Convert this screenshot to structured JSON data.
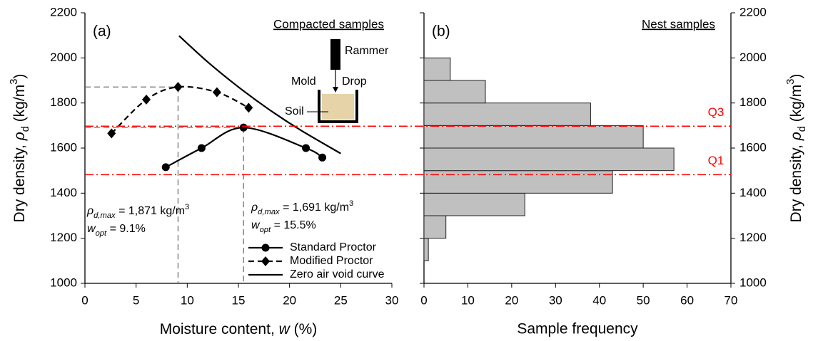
{
  "chart_data": [
    {
      "type": "line",
      "label": "(a)",
      "title": "Compacted samples",
      "xlabel_parts": [
        "Moisture content, ",
        "w",
        " (%)"
      ],
      "ylabel_parts": [
        "Dry density, ",
        "ρ",
        "d",
        " (kg/m",
        "3",
        ")"
      ],
      "xlim": [
        0,
        30
      ],
      "xticks": [
        0,
        5,
        10,
        15,
        20,
        25,
        30
      ],
      "ylim": [
        1000,
        2200
      ],
      "yticks": [
        1000,
        1200,
        1400,
        1600,
        1800,
        2000,
        2200
      ],
      "legend": "lower right",
      "series": [
        {
          "name": "Standard Proctor",
          "color": "#000000",
          "linestyle": "solid",
          "marker": "circle",
          "x": [
            7.9,
            11.4,
            15.5,
            21.6,
            23.2
          ],
          "values": [
            1515,
            1600,
            1691,
            1600,
            1558
          ]
        },
        {
          "name": "Modified Proctor",
          "color": "#000000",
          "linestyle": "dashed",
          "marker": "diamond",
          "x": [
            2.6,
            6.0,
            9.1,
            12.9,
            16.0
          ],
          "values": [
            1665,
            1815,
            1871,
            1848,
            1779
          ]
        },
        {
          "name": "Zero air void curve",
          "color": "#000000",
          "linestyle": "solid",
          "marker": "none",
          "x": [
            9.2,
            12,
            15,
            18,
            21,
            25
          ],
          "values": [
            2098,
            1982,
            1871,
            1771,
            1682,
            1576
          ]
        }
      ],
      "annotations": [
        {
          "parts": [
            "ρ",
            "d,max",
            " = 1,871 kg/m",
            "3"
          ]
        },
        {
          "parts": [
            "w",
            "opt",
            " = 9.1%"
          ]
        },
        {
          "parts": [
            "ρ",
            "d,max",
            " = 1,691 kg/m",
            "3"
          ]
        },
        {
          "parts": [
            "w",
            "opt",
            " = 15.5%"
          ]
        }
      ],
      "inset_labels": [
        "Rammer",
        "Drop",
        "Mold",
        "Soil"
      ]
    },
    {
      "type": "histogram",
      "orientation": "horizontal",
      "label": "(b)",
      "title": "Nest samples",
      "xlabel": "Sample frequency",
      "ylabel_parts": [
        "Dry density, ",
        "ρ",
        "d",
        " (kg/m",
        "3",
        ")"
      ],
      "bins": [
        1100,
        1200,
        1300,
        1400,
        1500,
        1600,
        1700,
        1800,
        1900,
        2000
      ],
      "counts": [
        1,
        5,
        23,
        43,
        57,
        50,
        38,
        14,
        6
      ],
      "color": "#c0c0c0",
      "xlim": [
        0,
        70
      ],
      "xticks": [
        0,
        10,
        20,
        30,
        40,
        50,
        60,
        70
      ],
      "ylim": [
        1000,
        2200
      ],
      "yticks": [
        1000,
        1200,
        1400,
        1600,
        1800,
        2000,
        2200
      ],
      "reference_color": "#ff0000",
      "reference_lines": [
        {
          "label": "Q3",
          "value": 1697
        },
        {
          "label": "Q1",
          "value": 1482
        }
      ]
    }
  ]
}
